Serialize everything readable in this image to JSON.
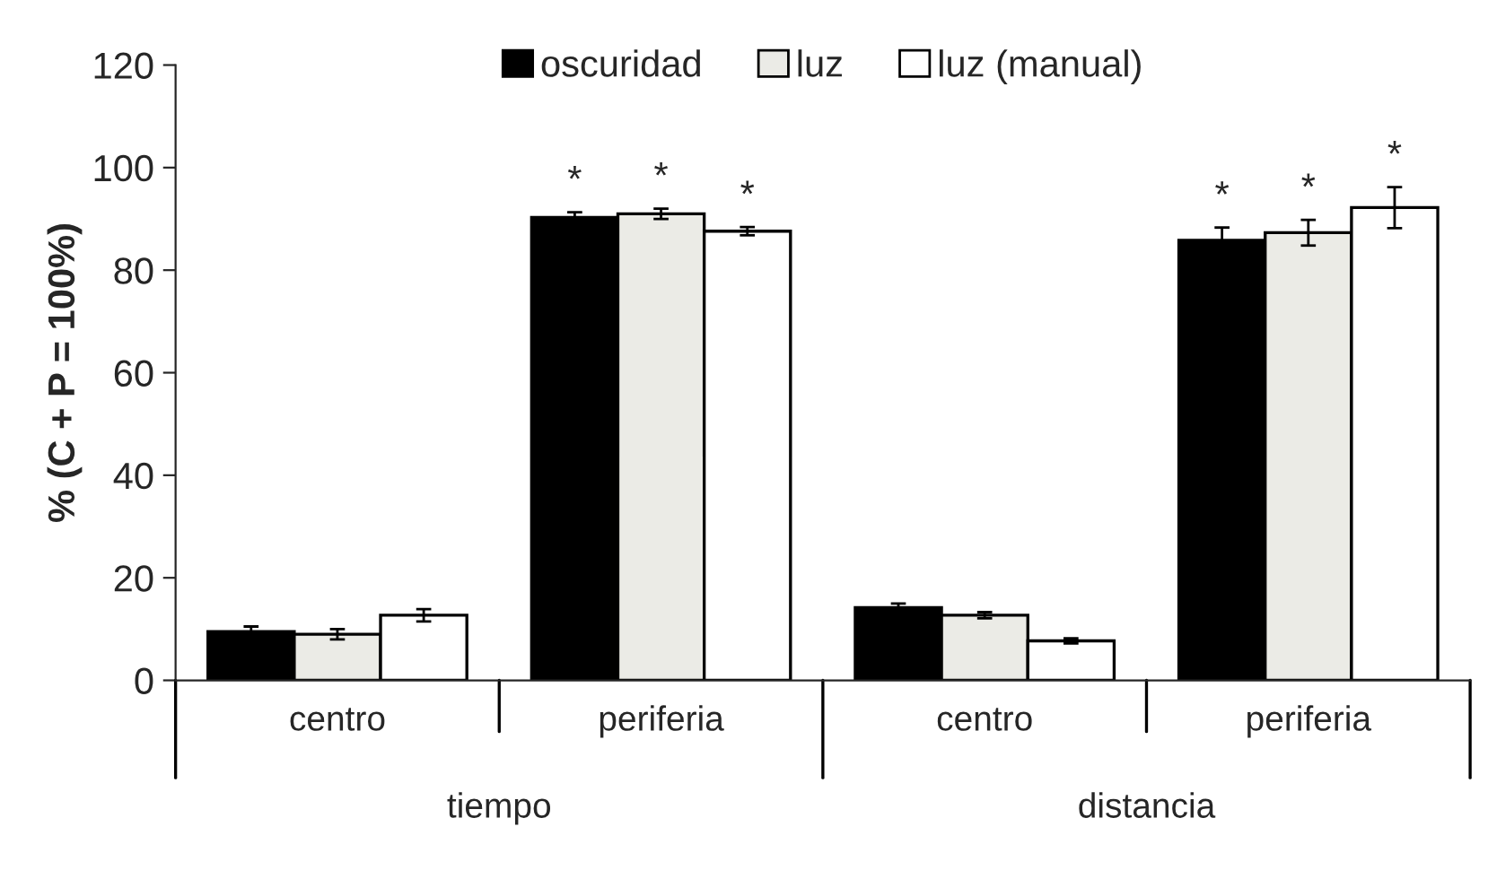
{
  "chart_data": {
    "type": "bar",
    "ylabel": "% (C + P = 100%)",
    "categories": [
      "centro",
      "periferia",
      "centro",
      "periferia"
    ],
    "series": [
      {
        "name": "oscuridad",
        "color": "#000000",
        "values": [
          9.5,
          90.3,
          14.2,
          85.8
        ],
        "errors": [
          1,
          1,
          0.8,
          2.5
        ],
        "value_labels": [
          null,
          "*",
          null,
          "*"
        ]
      },
      {
        "name": "luz",
        "color": "#ebebe6",
        "values": [
          9,
          91,
          12.7,
          87.3
        ],
        "errors": [
          1,
          1,
          0.6,
          2.5
        ],
        "value_labels": [
          null,
          "*",
          null,
          "*"
        ]
      },
      {
        "name": "luz (manual)",
        "color": "#ffffff",
        "values": [
          12.7,
          87.6,
          7.7,
          92.2
        ],
        "errors": [
          1.2,
          0.8,
          0.5,
          4
        ],
        "value_labels": [
          null,
          "*",
          null,
          "*"
        ]
      }
    ],
    "annotations": [
      "tiempo",
      "distancia"
    ],
    "ylim": [
      0,
      120
    ],
    "yticks": [
      0,
      20,
      40,
      60,
      80,
      100,
      120
    ],
    "grid": false,
    "legend": "top"
  }
}
